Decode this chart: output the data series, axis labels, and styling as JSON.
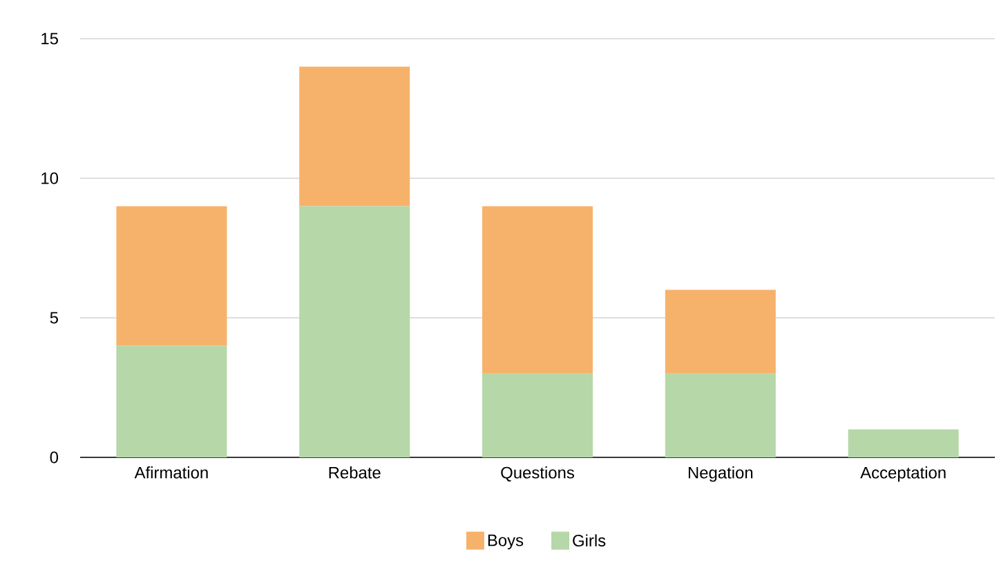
{
  "chart_data": {
    "type": "bar",
    "stacked": true,
    "categories": [
      "Afirmation",
      "Rebate",
      "Questions",
      "Negation",
      "Acceptation"
    ],
    "series": [
      {
        "name": "Girls",
        "color": "#b6d7a8",
        "values": [
          4,
          9,
          3,
          3,
          1
        ]
      },
      {
        "name": "Boys",
        "color": "#f6b26b",
        "values": [
          5,
          5,
          6,
          3,
          0
        ]
      }
    ],
    "ylim": [
      0,
      15
    ],
    "yticks": [
      0,
      5,
      10,
      15
    ],
    "grid": "y",
    "legend": "bottom"
  }
}
